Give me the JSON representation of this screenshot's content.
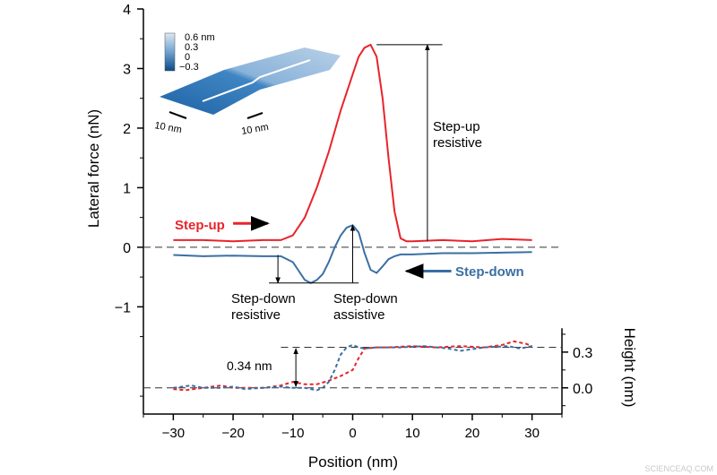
{
  "chart_data": {
    "type": "line",
    "xlabel": "Position (nm)",
    "ylabel": "Lateral force (nN)",
    "ylabel_right": "Height (nm)",
    "xlim": [
      -35,
      35
    ],
    "ylim": [
      -2.8,
      4
    ],
    "ylim_right": [
      -0.22,
      3.18
    ],
    "xticks": [
      -30,
      -20,
      -10,
      0,
      10,
      20,
      30
    ],
    "yticks": [
      4,
      3,
      2,
      1,
      0,
      -1
    ],
    "yticks_right": [
      0.3,
      0.0
    ],
    "grid": false,
    "colors": {
      "step_up": "#e8242b",
      "step_down": "#3a6fa3"
    },
    "series": [
      {
        "name": "Step-up",
        "axis": "left",
        "style": "solid",
        "color": "#e8242b",
        "x": [
          -30,
          -25,
          -20,
          -15,
          -12,
          -10,
          -8,
          -6,
          -4,
          -2,
          0,
          1,
          2,
          3,
          4,
          5,
          6,
          7,
          8,
          9,
          10,
          15,
          20,
          25,
          30
        ],
        "y": [
          0.12,
          0.12,
          0.1,
          0.12,
          0.12,
          0.2,
          0.5,
          1.0,
          1.6,
          2.3,
          2.9,
          3.2,
          3.35,
          3.4,
          3.2,
          2.5,
          1.5,
          0.6,
          0.15,
          0.1,
          0.1,
          0.12,
          0.1,
          0.14,
          0.12
        ]
      },
      {
        "name": "Step-down",
        "axis": "left",
        "style": "solid",
        "color": "#3a6fa3",
        "x": [
          -30,
          -25,
          -20,
          -15,
          -12,
          -10,
          -9,
          -8,
          -7,
          -6,
          -5,
          -4,
          -3,
          -2,
          -1,
          0,
          1,
          2,
          3,
          4,
          5,
          6,
          7,
          8,
          10,
          15,
          20,
          25,
          30
        ],
        "y": [
          -0.13,
          -0.15,
          -0.14,
          -0.15,
          -0.15,
          -0.25,
          -0.4,
          -0.55,
          -0.6,
          -0.55,
          -0.45,
          -0.25,
          0.0,
          0.2,
          0.33,
          0.37,
          0.25,
          -0.1,
          -0.38,
          -0.43,
          -0.32,
          -0.2,
          -0.15,
          -0.12,
          -0.12,
          -0.1,
          -0.1,
          -0.09,
          -0.08
        ]
      },
      {
        "name": "Step-up height",
        "axis": "right",
        "style": "dashed",
        "color": "#e8242b",
        "x": [
          -30,
          -28,
          -25,
          -22,
          -20,
          -18,
          -15,
          -12,
          -10,
          -8,
          -6,
          -4,
          -2,
          0,
          1,
          2,
          4,
          6,
          10,
          14,
          18,
          22,
          25,
          27,
          29,
          30
        ],
        "y": [
          -0.01,
          -0.02,
          0.0,
          0.02,
          0.0,
          0.0,
          0.0,
          0.02,
          0.05,
          0.03,
          0.03,
          0.06,
          0.1,
          0.15,
          0.25,
          0.33,
          0.34,
          0.34,
          0.35,
          0.34,
          0.35,
          0.34,
          0.36,
          0.39,
          0.37,
          0.35
        ]
      },
      {
        "name": "Step-down height",
        "axis": "right",
        "style": "dashed",
        "color": "#3a6fa3",
        "x": [
          -30,
          -27,
          -25,
          -22,
          -20,
          -18,
          -15,
          -12,
          -10,
          -8,
          -6,
          -5,
          -4,
          -3,
          -2,
          -1,
          0,
          1,
          2,
          4,
          8,
          12,
          16,
          18,
          22,
          26,
          28,
          30
        ],
        "y": [
          0.0,
          0.02,
          0.0,
          0.0,
          0.01,
          -0.01,
          0.0,
          0.01,
          0.0,
          0.0,
          -0.02,
          0.0,
          0.05,
          0.15,
          0.28,
          0.34,
          0.36,
          0.34,
          0.33,
          0.34,
          0.34,
          0.35,
          0.33,
          0.31,
          0.34,
          0.35,
          0.33,
          0.35
        ]
      }
    ],
    "annotations": {
      "step_up_label": "Step-up",
      "step_down_label": "Step-down",
      "step_up_resistive": [
        "Step-up",
        "resistive"
      ],
      "step_down_resistive": [
        "Step-down",
        "resistive"
      ],
      "step_down_assistive": [
        "Step-down",
        "assistive"
      ],
      "height_step": "0.34 nm"
    },
    "inset": {
      "colorbar_ticks": [
        "0.6 nm",
        "0.3",
        "0",
        "−0.3"
      ],
      "scale_bars": [
        "10 nm",
        "10 nm"
      ]
    }
  },
  "watermark": "SCIENCEAQ.COM"
}
